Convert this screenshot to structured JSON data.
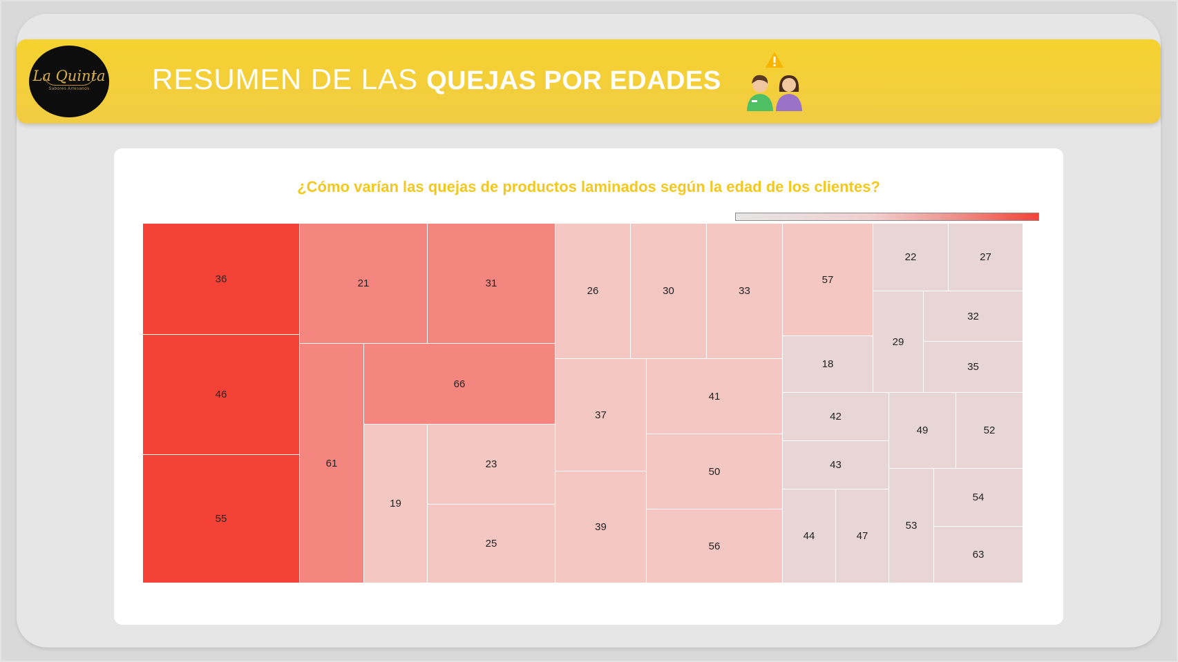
{
  "header": {
    "title_light": "RESUMEN DE LAS",
    "title_bold": "QUEJAS POR EDADES",
    "logo_name": "La Quinta",
    "logo_tagline": "Sabores Artesanos",
    "people_icon": "customer-complaint-icon"
  },
  "colors": {
    "header": "#f3cf37",
    "title_text": "#f2c81e",
    "level1": "#f44336",
    "level2": "#f4857f",
    "level3": "#f4c7c3",
    "level4": "#e8d5d5"
  },
  "chart_data": {
    "type": "treemap",
    "title": "¿Cómo varían las quejas de productos laminados según la edad de los clientes?",
    "color_scale": [
      "#e6e6e6",
      "#f44336"
    ],
    "groups": [
      {
        "level": 1,
        "ages": [
          36,
          46,
          55
        ]
      },
      {
        "level": 2,
        "ages": [
          21,
          31,
          61,
          66
        ]
      },
      {
        "level": 3,
        "ages": [
          19,
          23,
          25,
          26,
          30,
          33,
          37,
          39,
          41,
          50,
          56,
          57
        ]
      },
      {
        "level": 4,
        "ages": [
          18,
          22,
          27,
          29,
          32,
          35,
          42,
          43,
          44,
          47,
          49,
          52,
          53,
          54,
          63
        ]
      }
    ],
    "cells": [
      {
        "label": "36",
        "level": 1
      },
      {
        "label": "46",
        "level": 1
      },
      {
        "label": "55",
        "level": 1
      },
      {
        "label": "21",
        "level": 2
      },
      {
        "label": "31",
        "level": 2
      },
      {
        "label": "61",
        "level": 2
      },
      {
        "label": "66",
        "level": 2
      },
      {
        "label": "19",
        "level": 3
      },
      {
        "label": "23",
        "level": 3
      },
      {
        "label": "25",
        "level": 3
      },
      {
        "label": "26",
        "level": 3
      },
      {
        "label": "30",
        "level": 3
      },
      {
        "label": "33",
        "level": 3
      },
      {
        "label": "37",
        "level": 3
      },
      {
        "label": "41",
        "level": 3
      },
      {
        "label": "39",
        "level": 3
      },
      {
        "label": "50",
        "level": 3
      },
      {
        "label": "56",
        "level": 3
      },
      {
        "label": "57",
        "level": 3
      },
      {
        "label": "18",
        "level": 4
      },
      {
        "label": "22",
        "level": 4
      },
      {
        "label": "27",
        "level": 4
      },
      {
        "label": "29",
        "level": 4
      },
      {
        "label": "32",
        "level": 4
      },
      {
        "label": "35",
        "level": 4
      },
      {
        "label": "42",
        "level": 4
      },
      {
        "label": "43",
        "level": 4
      },
      {
        "label": "44",
        "level": 4
      },
      {
        "label": "47",
        "level": 4
      },
      {
        "label": "49",
        "level": 4
      },
      {
        "label": "52",
        "level": 4
      },
      {
        "label": "53",
        "level": 4
      },
      {
        "label": "54",
        "level": 4
      },
      {
        "label": "63",
        "level": 4
      }
    ]
  }
}
